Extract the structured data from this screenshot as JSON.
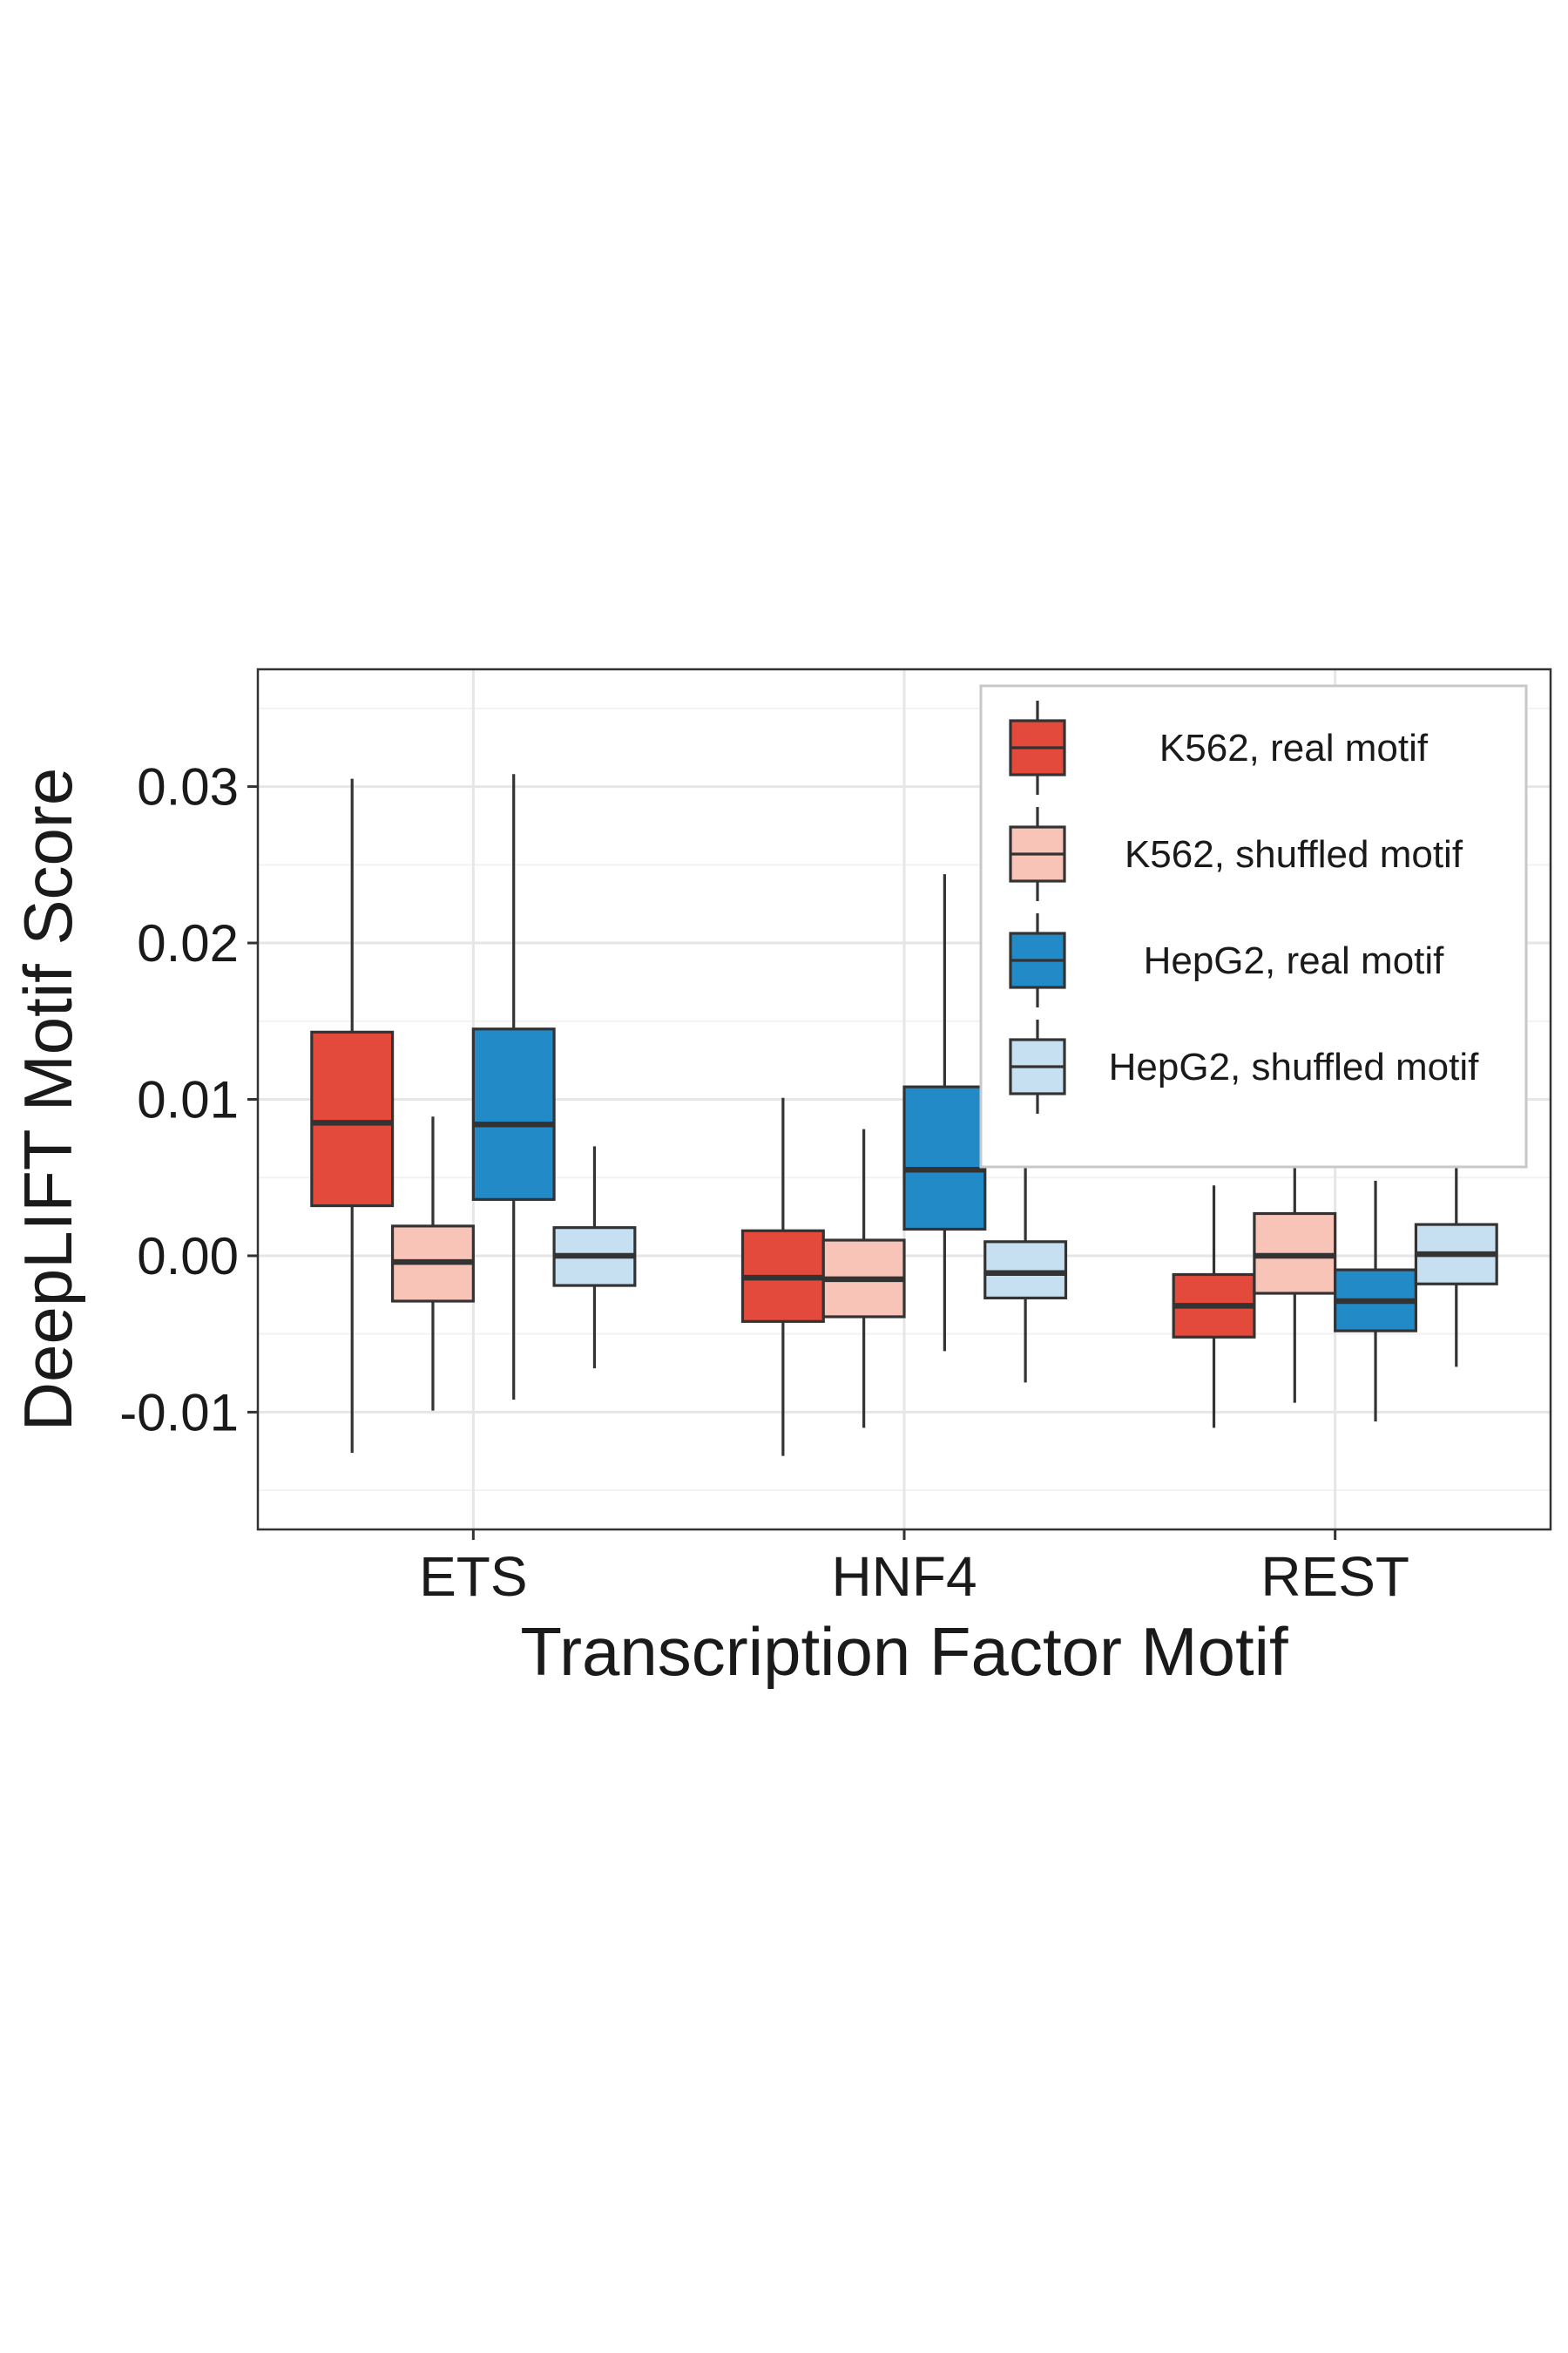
{
  "chart_data": {
    "type": "box",
    "xlabel": "Transcription Factor Motif",
    "ylabel": "DeepLIFT Motif Score",
    "categories": [
      "ETS",
      "HNF4",
      "REST"
    ],
    "ylim": [
      -0.0175,
      0.0375
    ],
    "yticks": [
      -0.01,
      0.0,
      0.01,
      0.02,
      0.03
    ],
    "ytick_labels": [
      "-0.01",
      "0.00",
      "0.01",
      "0.02",
      "0.03"
    ],
    "grid": true,
    "legend_position": "top-right",
    "series": [
      {
        "name": "K562, real motif",
        "color": "#E34A3B",
        "boxes": [
          {
            "whisker_low": -0.0126,
            "q1": 0.0032,
            "median": 0.0085,
            "q3": 0.0143,
            "whisker_high": 0.0305
          },
          {
            "whisker_low": -0.0128,
            "q1": -0.0042,
            "median": -0.0014,
            "q3": 0.0016,
            "whisker_high": 0.0101
          },
          {
            "whisker_low": -0.011,
            "q1": -0.0052,
            "median": -0.0032,
            "q3": -0.0012,
            "whisker_high": 0.0045
          }
        ]
      },
      {
        "name": "K562, shuffled motif",
        "color": "#F8C4B8",
        "boxes": [
          {
            "whisker_low": -0.0099,
            "q1": -0.0029,
            "median": -0.0004,
            "q3": 0.0019,
            "whisker_high": 0.0089
          },
          {
            "whisker_low": -0.011,
            "q1": -0.0039,
            "median": -0.0015,
            "q3": 0.001,
            "whisker_high": 0.0081
          },
          {
            "whisker_low": -0.0094,
            "q1": -0.0024,
            "median": 0.0,
            "q3": 0.0027,
            "whisker_high": 0.018
          }
        ]
      },
      {
        "name": "HepG2, real motif",
        "color": "#238AC8",
        "boxes": [
          {
            "whisker_low": -0.0092,
            "q1": 0.0036,
            "median": 0.0084,
            "q3": 0.0145,
            "whisker_high": 0.0308
          },
          {
            "whisker_low": -0.0061,
            "q1": 0.0017,
            "median": 0.0055,
            "q3": 0.0108,
            "whisker_high": 0.0244
          },
          {
            "whisker_low": -0.0106,
            "q1": -0.0048,
            "median": -0.0029,
            "q3": -0.0009,
            "whisker_high": 0.0048
          }
        ]
      },
      {
        "name": "HepG2, shuffled motif",
        "color": "#C6E0F2",
        "boxes": [
          {
            "whisker_low": -0.0072,
            "q1": -0.0019,
            "median": 0.0,
            "q3": 0.0018,
            "whisker_high": 0.007
          },
          {
            "whisker_low": -0.0081,
            "q1": -0.0027,
            "median": -0.0011,
            "q3": 0.0009,
            "whisker_high": 0.008
          },
          {
            "whisker_low": -0.0071,
            "q1": -0.0018,
            "median": 0.0001,
            "q3": 0.002,
            "whisker_high": 0.019
          }
        ]
      }
    ]
  }
}
